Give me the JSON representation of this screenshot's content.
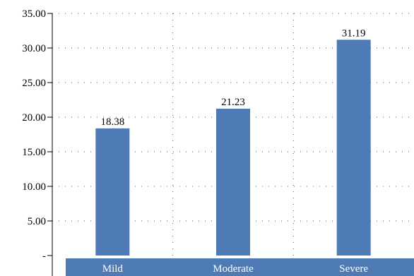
{
  "chart_data": {
    "type": "bar",
    "categories": [
      "Mild",
      "Moderate",
      "Severe"
    ],
    "values": [
      18.38,
      21.23,
      31.19
    ],
    "value_labels": [
      "18.38",
      "21.23",
      "31.19"
    ],
    "ylim": [
      0,
      35
    ],
    "yticks": [
      0,
      5,
      10,
      15,
      20,
      25,
      30,
      35
    ],
    "ytick_labels": [
      "-",
      "5.00",
      "10.00",
      "15.00",
      "20.00",
      "25.00",
      "30.00",
      "35.00"
    ],
    "grid": "dotted",
    "bar_color": "#4e7ab5",
    "axis_band_color": "#4e7ab5",
    "legend": "none"
  }
}
